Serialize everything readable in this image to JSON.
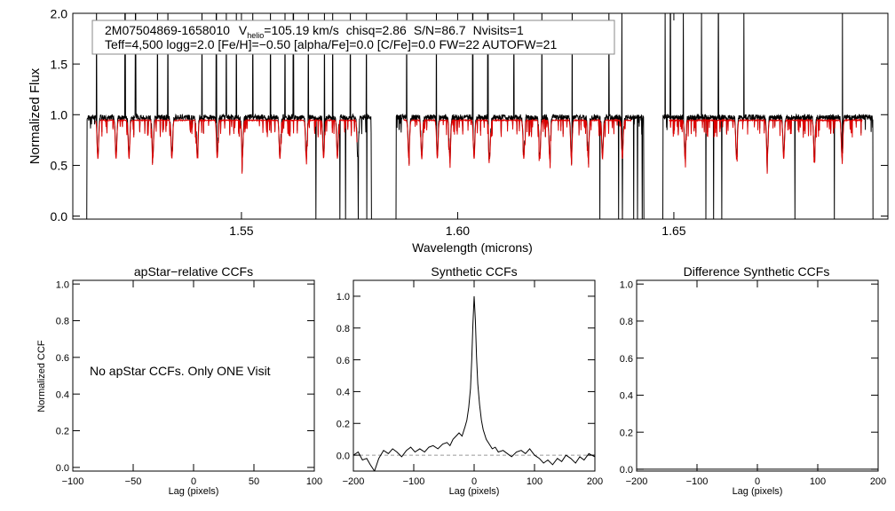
{
  "figure": {
    "star_id": "2M07504869-1658010",
    "vhelio_prefix": "V",
    "vhelio_sub": "helio",
    "vhelio_value": "=105.19 km/s",
    "chisq": "chisq=2.86",
    "snr": "S/N=86.7",
    "nvisits": "Nvisits=1",
    "params_line": "Teff=4,500 logg=2.0 [Fe/H]=−0.50 [alpha/Fe]=0.0 [C/Fe]=0.0 FW=22 AUTOFW=21"
  },
  "colors": {
    "observed": "#000000",
    "model": "#dd0000",
    "zero_line": "#999999"
  },
  "chart_data": [
    {
      "id": "spectrum",
      "type": "line",
      "xlabel": "Wavelength (microns)",
      "ylabel": "Normalized Flux",
      "xlim": [
        1.511,
        1.6995
      ],
      "ylim": [
        -0.03,
        2.0
      ],
      "xticks": [
        1.55,
        1.6,
        1.65
      ],
      "xtick_labels": [
        "1.55",
        "1.60",
        "1.65"
      ],
      "yticks": [
        0.0,
        0.5,
        1.0,
        1.5,
        2.0
      ],
      "ytick_labels": [
        "0.0",
        "0.5",
        "1.0",
        "1.5",
        "2.0"
      ],
      "chips": [
        [
          1.5143,
          1.58
        ],
        [
          1.5858,
          1.643
        ],
        [
          1.6475,
          1.696
        ]
      ],
      "continuum": 0.95,
      "series": [
        {
          "color_key": "observed",
          "emission_spikes": [
            1.5165,
            1.5231,
            1.5255,
            1.5306,
            1.533,
            1.5409,
            1.5442,
            1.5465,
            1.5488,
            1.5526,
            1.5567,
            1.5601,
            1.562,
            1.5655,
            1.5692,
            1.5711,
            1.5752,
            1.5789,
            1.5882,
            1.5951,
            1.6035,
            1.607,
            1.613,
            1.6195,
            1.6265,
            1.635,
            1.638,
            1.648,
            1.6492,
            1.6522,
            1.6564,
            1.6603,
            1.6662,
            1.689
          ],
          "absorption_drops": [
            1.5672,
            1.5728,
            1.5741,
            1.577,
            1.579,
            1.5842,
            1.6329,
            1.6372,
            1.6381,
            1.6407,
            1.6416,
            1.6427,
            1.6463,
            1.6574,
            1.6592,
            1.6611,
            1.678,
            1.6871
          ]
        },
        {
          "color_key": "model",
          "deep_lines": [
            1.5168,
            1.521,
            1.524,
            1.5295,
            1.5339,
            1.5398,
            1.5444,
            1.5502,
            1.5589,
            1.565,
            1.569,
            1.5722,
            1.5769,
            1.5887,
            1.5917,
            1.5953,
            1.5982,
            1.6038,
            1.6074,
            1.6153,
            1.619,
            1.6213,
            1.6263,
            1.6302,
            1.6335,
            1.6381,
            1.6526,
            1.6645,
            1.6716,
            1.6754,
            1.6825,
            1.6889
          ]
        }
      ]
    },
    {
      "id": "apstar_ccf",
      "type": "line",
      "title": "apStar−relative CCFs",
      "xlabel": "Lag (pixels)",
      "ylabel": "Normalized CCF",
      "xlim": [
        -100,
        100
      ],
      "ylim": [
        -0.02,
        1.02
      ],
      "xticks": [
        -100,
        -50,
        0,
        50,
        100
      ],
      "xtick_labels": [
        "−100",
        "−50",
        "0",
        "50",
        "100"
      ],
      "yticks": [
        0.0,
        0.2,
        0.4,
        0.6,
        0.8,
        1.0
      ],
      "ytick_labels": [
        "0.0",
        "0.2",
        "0.4",
        "0.6",
        "0.8",
        "1.0"
      ],
      "message": "No apStar CCFs.  Only ONE Visit",
      "series": []
    },
    {
      "id": "synthetic_ccf",
      "type": "line",
      "title": "Synthetic CCFs",
      "xlabel": "Lag (pixels)",
      "xlim": [
        -200,
        200
      ],
      "ylim": [
        -0.1,
        1.1
      ],
      "xticks": [
        -200,
        -100,
        0,
        100,
        200
      ],
      "xtick_labels": [
        "−200",
        "−100",
        "0",
        "100",
        "200"
      ],
      "yticks": [
        0.0,
        0.2,
        0.4,
        0.6,
        0.8,
        1.0
      ],
      "ytick_labels": [
        "0.0",
        "0.2",
        "0.4",
        "0.6",
        "0.8",
        "1.0"
      ],
      "zero_line": 0.0,
      "series": [
        {
          "color_key": "observed",
          "x": [
            -200,
            -192,
            -185,
            -178,
            -172,
            -165,
            -158,
            -150,
            -142,
            -135,
            -128,
            -120,
            -112,
            -105,
            -98,
            -90,
            -82,
            -75,
            -68,
            -60,
            -52,
            -45,
            -40,
            -35,
            -30,
            -25,
            -20,
            -15,
            -12,
            -9,
            -6,
            -4,
            -2,
            0,
            2,
            4,
            6,
            9,
            12,
            15,
            20,
            25,
            30,
            35,
            40,
            48,
            55,
            62,
            70,
            78,
            85,
            92,
            100,
            108,
            115,
            122,
            130,
            138,
            145,
            152,
            160,
            168,
            175,
            182,
            190,
            200
          ],
          "y": [
            0.0,
            0.02,
            -0.03,
            -0.02,
            -0.06,
            -0.1,
            -0.02,
            0.03,
            0.01,
            0.04,
            0.02,
            -0.01,
            0.03,
            0.05,
            0.02,
            0.04,
            0.02,
            0.05,
            0.06,
            0.04,
            0.07,
            0.08,
            0.06,
            0.1,
            0.12,
            0.14,
            0.12,
            0.18,
            0.22,
            0.3,
            0.42,
            0.6,
            0.82,
            1.0,
            0.85,
            0.62,
            0.45,
            0.32,
            0.22,
            0.16,
            0.1,
            0.07,
            0.04,
            0.05,
            0.02,
            0.03,
            0.01,
            -0.01,
            0.02,
            0.03,
            0.01,
            0.04,
            0.0,
            -0.02,
            -0.05,
            -0.03,
            -0.06,
            -0.02,
            -0.04,
            0.0,
            -0.02,
            -0.05,
            -0.01,
            -0.03,
            0.01,
            -0.01
          ]
        }
      ]
    },
    {
      "id": "difference_ccf",
      "type": "line",
      "title": "Difference Synthetic CCFs",
      "xlabel": "Lag (pixels)",
      "xlim": [
        -200,
        200
      ],
      "ylim": [
        -0.01,
        1.02
      ],
      "xticks": [
        -200,
        -100,
        0,
        100,
        200
      ],
      "xtick_labels": [
        "−200",
        "−100",
        "0",
        "100",
        "200"
      ],
      "yticks": [
        0.0,
        0.2,
        0.4,
        0.6,
        0.8,
        1.0
      ],
      "ytick_labels": [
        "0.0",
        "0.2",
        "0.4",
        "0.6",
        "0.8",
        "1.0"
      ],
      "series": [
        {
          "color_key": "observed",
          "x": [
            -200,
            200
          ],
          "y": [
            0.0,
            0.0
          ]
        }
      ]
    }
  ]
}
